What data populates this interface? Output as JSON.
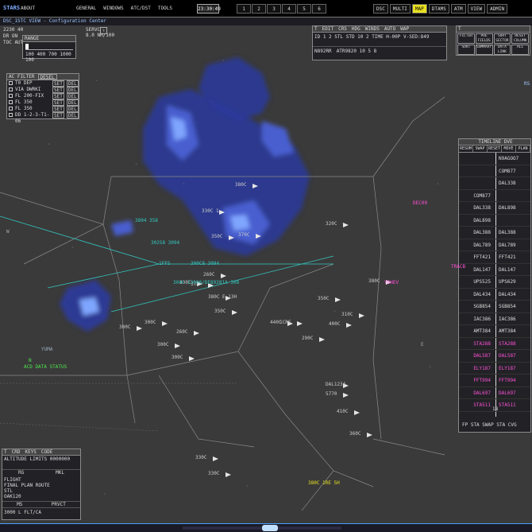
{
  "topbar": {
    "logo": "STARS",
    "about": "ABOUT",
    "menu": [
      "GENERAL",
      "WINDOWS",
      "ATC/DST",
      "TOOLS"
    ],
    "clock": "23:30:49",
    "pages": [
      "1",
      "2",
      "3",
      "4",
      "5",
      "6"
    ],
    "modes": [
      {
        "label": "DSC",
        "on": false
      },
      {
        "label": "MULTI",
        "on": false
      },
      {
        "label": "MAP",
        "on": true
      },
      {
        "label": "DTAMS",
        "on": false
      },
      {
        "label": "ATM",
        "on": false
      },
      {
        "label": "VIEW",
        "on": false
      },
      {
        "label": "ADMIN",
        "on": false
      }
    ]
  },
  "subbar": {
    "title": "DSC_1STC VIEW - Configuration Center"
  },
  "top_left": {
    "alt": "2230 40",
    "mode1": "DR ON",
    "mode2": "TOC AUTO",
    "srvc": "SERVC",
    "rng": "8.0 NM/100"
  },
  "range_box": {
    "label": "RANGE",
    "values": "100 400 700 1000",
    "current": "100"
  },
  "ac_filter": {
    "title": "AC FILTER",
    "mode": "DESEL",
    "items": [
      {
        "label": "T0 DEP",
        "a": "SET",
        "b": "DEL"
      },
      {
        "label": "VIA DWRKI",
        "a": "SET",
        "b": "DEL"
      },
      {
        "label": "FL 200-FIX",
        "a": "SET",
        "b": "DEL"
      },
      {
        "label": "FL 350",
        "a": "SET",
        "b": "DEL"
      },
      {
        "label": "FL 350",
        "a": "SET",
        "b": "DEL"
      },
      {
        "label": "DD 1-2-3-T1-06",
        "a": "SET",
        "b": "DEL"
      }
    ]
  },
  "flight_panel": {
    "tabs": [
      "T",
      "EDIT",
      "CRS",
      "HDG",
      "WINDS",
      "AUTO",
      "WAP"
    ],
    "line1": "ID  1 2   STL STD 10 2   TIME H-00P V-SED:849",
    "line2": "N892RR",
    "line3": "ATR9820  10  5  8"
  },
  "filter_panel": {
    "title": "T",
    "buttons": [
      "FILTER",
      "PDE FIELDS",
      "SORT SECTOR",
      "RESET COLUMN",
      "SORT",
      "SUMMARY",
      "DATA LINK",
      "ALL"
    ]
  },
  "timeline": {
    "title": "TIMELINE DVE",
    "tabs": [
      "RESUM",
      "SWAP",
      "RESET",
      "MOVE",
      "PLAN"
    ],
    "footer": "FP STA SWAP STA CVG",
    "scale": "18",
    "rows": [
      {
        "left": "",
        "right": "N9AGOO7",
        "mag": false
      },
      {
        "left": "",
        "right": "COM877",
        "mag": false
      },
      {
        "left": "",
        "right": "DAL338",
        "mag": false
      },
      {
        "left": "COM877",
        "right": "",
        "mag": false
      },
      {
        "left": "DAL338",
        "right": "DAL898",
        "mag": false
      },
      {
        "left": "DAL898",
        "right": "",
        "mag": false
      },
      {
        "left": "DAL388",
        "right": "DAL388",
        "mag": false
      },
      {
        "left": "DAL789",
        "right": "DAL789",
        "mag": false
      },
      {
        "left": "FFT421",
        "right": "FFT421",
        "mag": false
      },
      {
        "left": "DAL147",
        "right": "DAL147",
        "mag": false
      },
      {
        "left": "UPS525",
        "right": "UPS629",
        "mag": false
      },
      {
        "left": "DAL434",
        "right": "DAL434",
        "mag": false
      },
      {
        "left": "SGB854",
        "right": "SGB854",
        "mag": false
      },
      {
        "left": "IAC386",
        "right": "IAC386",
        "mag": false
      },
      {
        "left": "AMT384",
        "right": "AMT384",
        "mag": false
      },
      {
        "left": "STA288",
        "right": "STA288",
        "mag": true
      },
      {
        "left": "DAL587",
        "right": "DAL587",
        "mag": true
      },
      {
        "left": "ELY187",
        "right": "ELY187",
        "mag": true
      },
      {
        "left": "FFT994",
        "right": "FFT994",
        "mag": true
      },
      {
        "left": "DAL697",
        "right": "DAL697",
        "mag": true
      },
      {
        "left": "STA511",
        "right": "STA511",
        "mag": true
      }
    ]
  },
  "crd_panel": {
    "tabs": [
      "T",
      "CRD",
      "KEYS",
      "CODE"
    ],
    "line1": "ALTITUDE LIMITS  0000000",
    "line2": "FLIGHT",
    "line3": "FINAL PLAN ROUTE",
    "line4": "STL",
    "line5": "OAK120",
    "row_a": "RG",
    "row_b": "MKL",
    "row_c": "MS",
    "row_d": "PRVCT",
    "row_e": "3000 L FLT/CA"
  },
  "scope_labels": {
    "n": "N",
    "status_line": "ACD DATA STATUS",
    "e_label": "E",
    "w_label": "W",
    "y_label": "YUMA",
    "rs": "RS"
  },
  "tracks": [
    {
      "text": "380C",
      "color": "#ccc"
    },
    {
      "text": "330C 1",
      "color": "#ccc"
    },
    {
      "text": "350C",
      "color": "#ccc"
    },
    {
      "text": "370C",
      "color": "#ccc"
    },
    {
      "text": "260C",
      "color": "#ccc"
    },
    {
      "text": "37E",
      "color": "#ccc"
    },
    {
      "text": "380C E 13H",
      "color": "#ccc"
    },
    {
      "text": "440C",
      "color": "#ccc"
    },
    {
      "text": "400C",
      "color": "#ccc"
    },
    {
      "text": "310C",
      "color": "#ccc"
    },
    {
      "text": "1CRE",
      "color": "#ccc"
    },
    {
      "text": "DAL1234",
      "color": "#ccc"
    },
    {
      "text": "5770",
      "color": "#ccc"
    },
    {
      "text": "410C",
      "color": "#ccc"
    },
    {
      "text": "360C",
      "color": "#ccc"
    },
    {
      "text": "380C",
      "color": "#ccc"
    },
    {
      "text": "350C",
      "color": "#ccc"
    },
    {
      "text": "330C",
      "color": "#ccc"
    },
    {
      "text": "350C",
      "color": "#ccc"
    },
    {
      "text": "260C",
      "color": "#ccc"
    },
    {
      "text": "300C",
      "color": "#ccc"
    },
    {
      "text": "300C",
      "color": "#ccc"
    },
    {
      "text": "300C",
      "color": "#ccc"
    },
    {
      "text": "330C",
      "color": "#ccc"
    },
    {
      "text": "330C",
      "color": "#ccc"
    },
    {
      "text": "300C",
      "color": "#ccc"
    },
    {
      "text": "290C",
      "color": "#ccc"
    },
    {
      "text": "320C",
      "color": "#ccc"
    }
  ],
  "cyan_labels": [
    "3804 358",
    "302S8 3094",
    "1FFS",
    "300C8 3094",
    "304C 13090/DE89281A 308"
  ],
  "magenta_labels": [
    "DEC09",
    "YOHEV",
    "TRACB"
  ],
  "yellow_label": "380C 1RE 5H",
  "colors": {
    "weather_dark": "#2b3a9e",
    "weather_mid": "#4a5fd0",
    "weather_light": "#7fa6ff",
    "boundary": "#8a8a8a",
    "cyan": "#33c8c0",
    "magenta": "#ff4fd8"
  },
  "statusbar": {
    "items": [
      "",
      "",
      "",
      "",
      ""
    ]
  }
}
